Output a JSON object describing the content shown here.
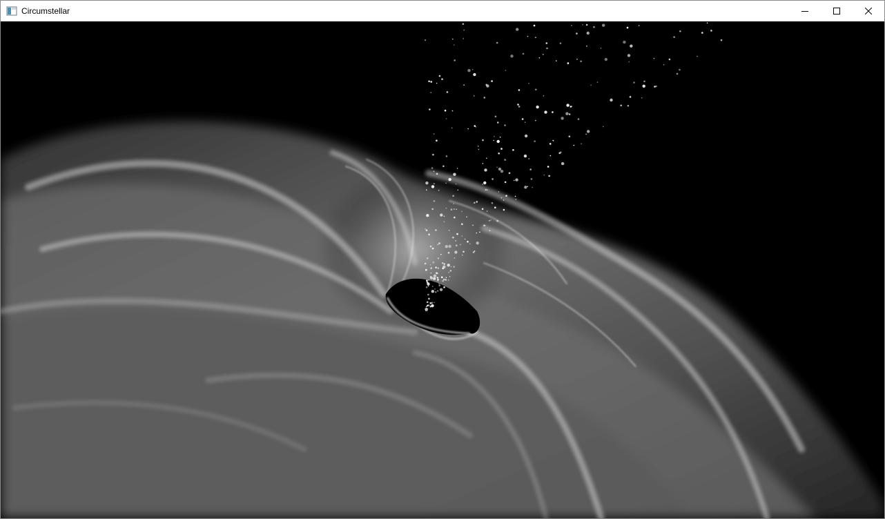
{
  "window": {
    "title": "Circumstellar",
    "icon": "app-window-icon",
    "controls": {
      "minimize_icon": "minimize-icon",
      "maximize_icon": "maximize-icon",
      "close_icon": "close-icon"
    }
  },
  "scene": {
    "description_icon": "black-hole-render",
    "colors": {
      "background": "#000000",
      "disk": "#d8d8d8",
      "particles": "#ffffff"
    }
  }
}
